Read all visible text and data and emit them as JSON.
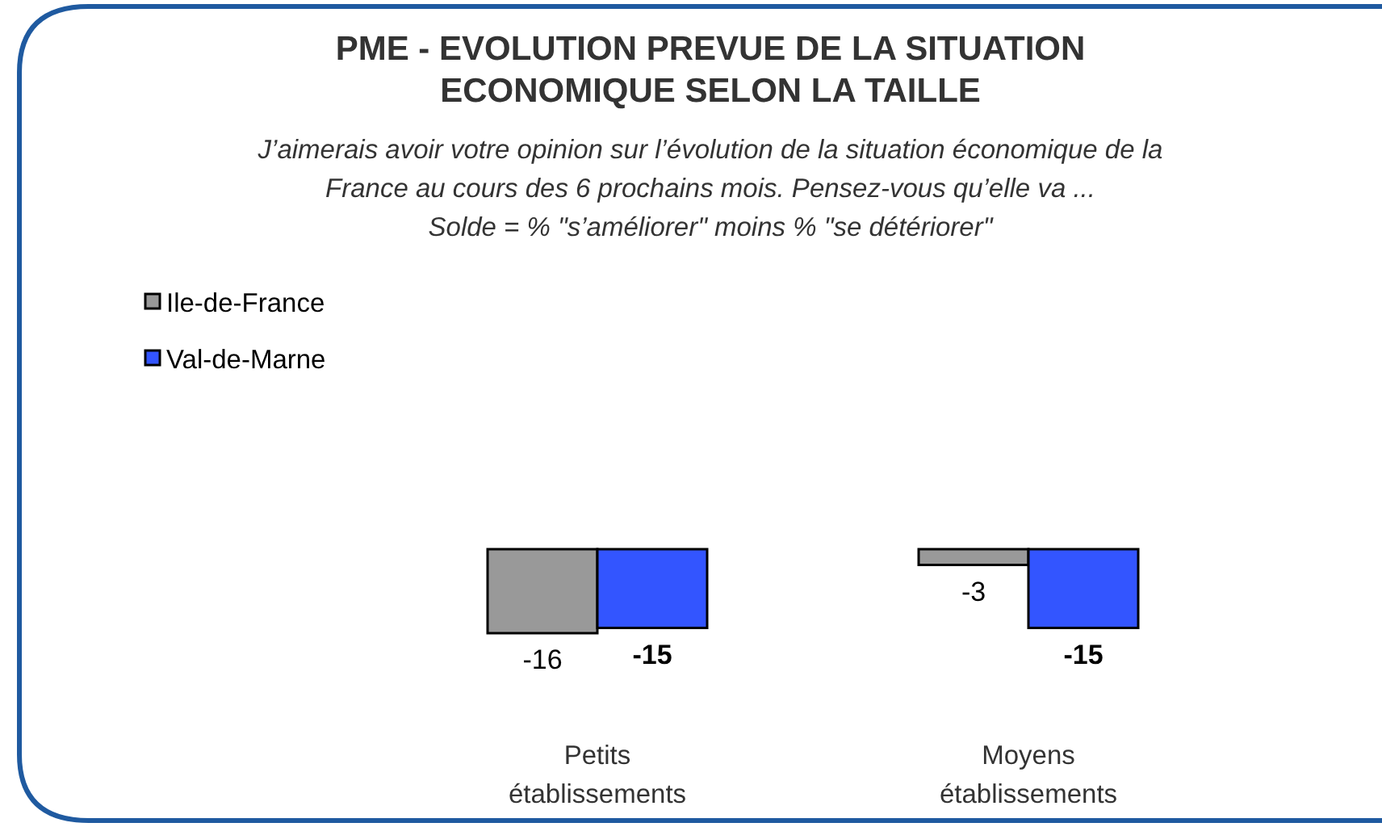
{
  "chart_data": {
    "type": "bar",
    "title": "PME - EVOLUTION PREVUE DE LA SITUATION\nECONOMIQUE SELON LA TAILLE",
    "subtitle": "J’aimerais avoir votre opinion sur l’évolution de la situation économique de la\nFrance au cours des 6 prochains mois. Pensez-vous qu’elle va ...\nSolde = % \"s’améliorer\"  moins % \"se détériorer\"",
    "categories": [
      "Petits établissements",
      "Moyens établissements"
    ],
    "series": [
      {
        "name": "Ile-de-France",
        "color": "#999999",
        "values": [
          -16,
          -3
        ]
      },
      {
        "name": "Val-de-Marne",
        "color": "#3355ff",
        "values": [
          -15,
          -15
        ]
      }
    ],
    "data_labels": true,
    "legend": "top left"
  }
}
